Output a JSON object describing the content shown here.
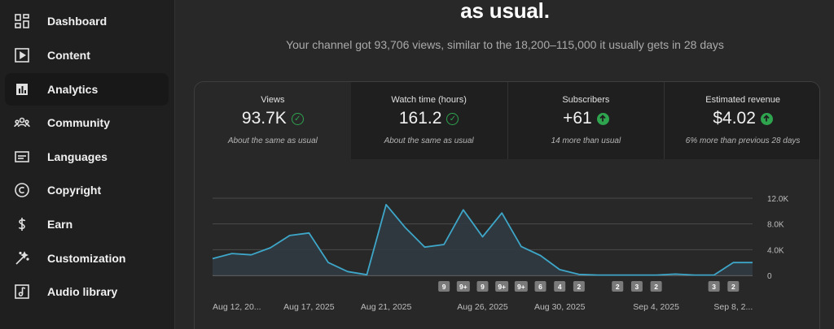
{
  "sidebar": {
    "items": [
      {
        "label": "Dashboard",
        "icon": "dashboard-icon",
        "active": false
      },
      {
        "label": "Content",
        "icon": "content-icon",
        "active": false
      },
      {
        "label": "Analytics",
        "icon": "analytics-icon",
        "active": true
      },
      {
        "label": "Community",
        "icon": "community-icon",
        "active": false
      },
      {
        "label": "Languages",
        "icon": "languages-icon",
        "active": false
      },
      {
        "label": "Copyright",
        "icon": "copyright-icon",
        "active": false
      },
      {
        "label": "Earn",
        "icon": "earn-icon",
        "active": false
      },
      {
        "label": "Customization",
        "icon": "customization-icon",
        "active": false
      },
      {
        "label": "Audio library",
        "icon": "audio-library-icon",
        "active": false
      }
    ]
  },
  "header": {
    "headline": "as usual.",
    "subline": "Your channel got 93,706 views, similar to the 18,200–115,000 it usually gets in 28 days"
  },
  "metrics": [
    {
      "title": "Views",
      "value": "93.7K",
      "badge": "check",
      "sub": "About the same as usual"
    },
    {
      "title": "Watch time (hours)",
      "value": "161.2",
      "badge": "check",
      "sub": "About the same as usual"
    },
    {
      "title": "Subscribers",
      "value": "+61",
      "badge": "up",
      "sub": "14 more than usual"
    },
    {
      "title": "Estimated revenue",
      "value": "$4.02",
      "badge": "up",
      "sub": "6% more than previous 28 days"
    }
  ],
  "colors": {
    "line": "#3ea6c8",
    "area": "#2f3b42",
    "positive": "#2ea44f",
    "grid": "#4a4a4a",
    "marker_bg": "#7a7a7a"
  },
  "chart_data": {
    "type": "area",
    "y_ticks": [
      "12.0K",
      "8.0K",
      "4.0K",
      "0"
    ],
    "ylim": [
      0,
      12000
    ],
    "x_tick_labels": [
      "Aug 12, 20...",
      "Aug 17, 2025",
      "Aug 21, 2025",
      "Aug 26, 2025",
      "Aug 30, 2025",
      "Sep 4, 2025",
      "Sep 8, 2..."
    ],
    "values": [
      2600,
      3400,
      3200,
      4300,
      6200,
      6600,
      2000,
      600,
      100,
      11000,
      7400,
      4400,
      4800,
      10200,
      6000,
      9700,
      4500,
      3100,
      900,
      150,
      50,
      50,
      50,
      50,
      200,
      50,
      50,
      2000,
      2000
    ],
    "markers": [
      {
        "label": "9",
        "index": 12
      },
      {
        "label": "9+",
        "index": 13
      },
      {
        "label": "9",
        "index": 14
      },
      {
        "label": "9+",
        "index": 15
      },
      {
        "label": "9+",
        "index": 16
      },
      {
        "label": "6",
        "index": 17
      },
      {
        "label": "4",
        "index": 18
      },
      {
        "label": "2",
        "index": 19
      },
      {
        "label": "2",
        "index": 21
      },
      {
        "label": "3",
        "index": 22
      },
      {
        "label": "2",
        "index": 23
      },
      {
        "label": "3",
        "index": 26
      },
      {
        "label": "2",
        "index": 27
      }
    ]
  }
}
